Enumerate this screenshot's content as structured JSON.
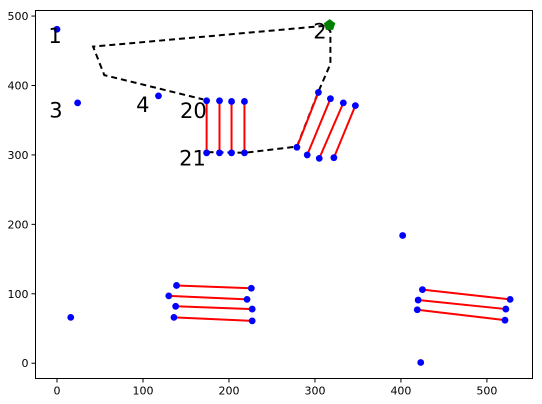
{
  "chart_data": {
    "type": "scatter",
    "title": "",
    "xlabel": "",
    "ylabel": "",
    "xlim": [
      -25,
      553
    ],
    "ylim": [
      -22,
      508
    ],
    "xticks": [
      0,
      100,
      200,
      300,
      400,
      500
    ],
    "yticks": [
      0,
      100,
      200,
      300,
      400,
      500
    ],
    "grid": false,
    "colors": {
      "points": "#0000ff",
      "segments": "#ff0000",
      "path": "#000000",
      "goal": "#008000"
    },
    "points": [
      {
        "x": 0,
        "y": 481
      },
      {
        "x": 24,
        "y": 375
      },
      {
        "x": 118,
        "y": 385
      },
      {
        "x": 16,
        "y": 66
      },
      {
        "x": 402,
        "y": 184
      },
      {
        "x": 423,
        "y": 1
      },
      {
        "x": 174,
        "y": 378
      },
      {
        "x": 174,
        "y": 303
      },
      {
        "x": 189,
        "y": 378
      },
      {
        "x": 189,
        "y": 303
      },
      {
        "x": 203,
        "y": 377
      },
      {
        "x": 203,
        "y": 303
      },
      {
        "x": 218,
        "y": 377
      },
      {
        "x": 218,
        "y": 303
      },
      {
        "x": 304,
        "y": 390
      },
      {
        "x": 279,
        "y": 311
      },
      {
        "x": 318,
        "y": 381
      },
      {
        "x": 291,
        "y": 300
      },
      {
        "x": 333,
        "y": 375
      },
      {
        "x": 305,
        "y": 295
      },
      {
        "x": 347,
        "y": 371
      },
      {
        "x": 322,
        "y": 296
      },
      {
        "x": 139,
        "y": 112
      },
      {
        "x": 226,
        "y": 108
      },
      {
        "x": 130,
        "y": 97
      },
      {
        "x": 221,
        "y": 92
      },
      {
        "x": 138,
        "y": 82
      },
      {
        "x": 227,
        "y": 78
      },
      {
        "x": 136,
        "y": 66
      },
      {
        "x": 227,
        "y": 61
      },
      {
        "x": 425,
        "y": 106
      },
      {
        "x": 527,
        "y": 92
      },
      {
        "x": 420,
        "y": 91
      },
      {
        "x": 522,
        "y": 78
      },
      {
        "x": 419,
        "y": 77
      },
      {
        "x": 521,
        "y": 62
      }
    ],
    "segments": [
      {
        "x1": 174,
        "y1": 378,
        "x2": 174,
        "y2": 303
      },
      {
        "x1": 189,
        "y1": 378,
        "x2": 189,
        "y2": 303
      },
      {
        "x1": 203,
        "y1": 377,
        "x2": 203,
        "y2": 303
      },
      {
        "x1": 218,
        "y1": 377,
        "x2": 218,
        "y2": 303
      },
      {
        "x1": 304,
        "y1": 390,
        "x2": 279,
        "y2": 311
      },
      {
        "x1": 318,
        "y1": 381,
        "x2": 291,
        "y2": 300
      },
      {
        "x1": 333,
        "y1": 375,
        "x2": 305,
        "y2": 295
      },
      {
        "x1": 347,
        "y1": 371,
        "x2": 322,
        "y2": 296
      },
      {
        "x1": 139,
        "y1": 112,
        "x2": 226,
        "y2": 108
      },
      {
        "x1": 130,
        "y1": 97,
        "x2": 221,
        "y2": 92
      },
      {
        "x1": 138,
        "y1": 82,
        "x2": 227,
        "y2": 78
      },
      {
        "x1": 136,
        "y1": 66,
        "x2": 227,
        "y2": 61
      },
      {
        "x1": 425,
        "y1": 106,
        "x2": 527,
        "y2": 92
      },
      {
        "x1": 420,
        "y1": 91,
        "x2": 522,
        "y2": 78
      },
      {
        "x1": 419,
        "y1": 77,
        "x2": 521,
        "y2": 62
      }
    ],
    "path": [
      {
        "x": 175,
        "y": 304
      },
      {
        "x": 218,
        "y": 303
      },
      {
        "x": 279,
        "y": 312
      },
      {
        "x": 304,
        "y": 391
      },
      {
        "x": 318,
        "y": 431
      },
      {
        "x": 318,
        "y": 478
      },
      {
        "x": 312,
        "y": 486
      },
      {
        "x": 42,
        "y": 456
      },
      {
        "x": 55,
        "y": 415
      },
      {
        "x": 170,
        "y": 380
      }
    ],
    "goal": {
      "x": 317,
      "y": 487
    },
    "annotations": [
      {
        "text": "1",
        "x": -10,
        "y": 461
      },
      {
        "text": "2",
        "x": 298,
        "y": 468
      },
      {
        "text": "3",
        "x": -9,
        "y": 354
      },
      {
        "text": "4",
        "x": 92,
        "y": 362
      },
      {
        "text": "20",
        "x": 143,
        "y": 353
      },
      {
        "text": "21",
        "x": 142,
        "y": 285
      }
    ]
  }
}
